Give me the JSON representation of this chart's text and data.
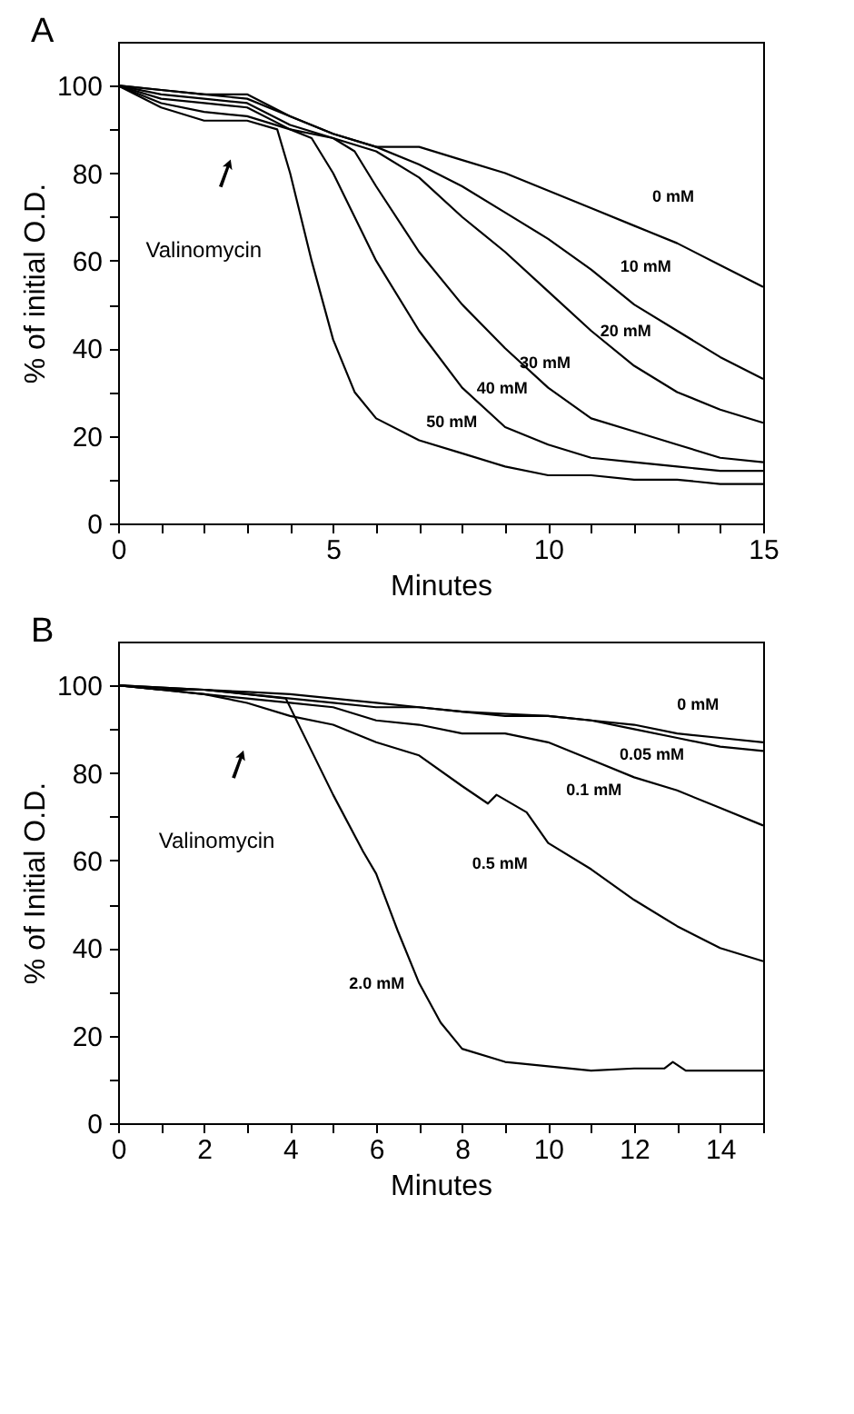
{
  "chart_data": [
    {
      "type": "line",
      "title": "A",
      "xlabel": "Minutes",
      "ylabel": "% of initial O.D.",
      "xlim": [
        0,
        15
      ],
      "ylim": [
        0,
        110
      ],
      "xticks": [
        0,
        {
          "value": 1,
          "label": null
        },
        {
          "value": 2,
          "label": null
        },
        {
          "value": 3,
          "label": null
        },
        {
          "value": 4,
          "label": null
        },
        5,
        {
          "value": 6,
          "label": null
        },
        {
          "value": 7,
          "label": null
        },
        {
          "value": 8,
          "label": null
        },
        {
          "value": 9,
          "label": null
        },
        10,
        {
          "value": 11,
          "label": null
        },
        {
          "value": 12,
          "label": null
        },
        {
          "value": 13,
          "label": null
        },
        {
          "value": 14,
          "label": null
        },
        15
      ],
      "yticks": [
        0,
        {
          "value": 10,
          "label": null
        },
        20,
        {
          "value": 30,
          "label": null
        },
        40,
        {
          "value": 50,
          "label": null
        },
        60,
        {
          "value": 70,
          "label": null
        },
        80,
        {
          "value": 90,
          "label": null
        },
        100
      ],
      "grid": false,
      "legend": false,
      "marker": "none",
      "line_style": "solid",
      "annotations": [
        {
          "text": "Valinomycin",
          "x": 2.5,
          "y": 80
        }
      ],
      "series": [
        {
          "name": "0 mM",
          "color": "#000000",
          "x": [
            0,
            1,
            2,
            3,
            4,
            5,
            6,
            7,
            8,
            9,
            10,
            11,
            12,
            13,
            14,
            15
          ],
          "values": [
            100,
            99,
            98,
            98,
            93,
            89,
            86,
            86,
            83,
            80,
            76,
            72,
            68,
            64,
            59,
            54
          ]
        },
        {
          "name": "10 mM",
          "color": "#000000",
          "x": [
            0,
            1,
            2,
            3,
            4,
            5,
            6,
            7,
            8,
            9,
            10,
            11,
            12,
            13,
            14,
            15
          ],
          "values": [
            100,
            99,
            98,
            97,
            93,
            89,
            86,
            82,
            77,
            71,
            65,
            58,
            50,
            44,
            38,
            33
          ]
        },
        {
          "name": "20 mM",
          "color": "#000000",
          "x": [
            0,
            1,
            2,
            3,
            4,
            5,
            6,
            7,
            8,
            9,
            10,
            11,
            12,
            13,
            14,
            15
          ],
          "values": [
            100,
            98,
            97,
            96,
            91,
            88,
            85,
            79,
            70,
            62,
            53,
            44,
            36,
            30,
            26,
            23
          ]
        },
        {
          "name": "30 mM",
          "color": "#000000",
          "x": [
            0,
            1,
            2,
            3,
            4,
            5,
            5.5,
            6,
            7,
            8,
            9,
            10,
            11,
            12,
            13,
            14,
            15
          ],
          "values": [
            100,
            97,
            96,
            95,
            90,
            88,
            85,
            77,
            62,
            50,
            40,
            31,
            24,
            21,
            18,
            15,
            14
          ]
        },
        {
          "name": "40 mM",
          "color": "#000000",
          "x": [
            0,
            1,
            2,
            3,
            4,
            4.5,
            5,
            6,
            7,
            8,
            9,
            10,
            11,
            12,
            13,
            14,
            15
          ],
          "values": [
            100,
            96,
            94,
            93,
            90,
            88,
            80,
            60,
            44,
            31,
            22,
            18,
            15,
            14,
            13,
            12,
            12
          ]
        },
        {
          "name": "50 mM",
          "color": "#000000",
          "x": [
            0,
            1,
            2,
            3,
            3.7,
            4,
            4.5,
            5,
            5.5,
            6,
            7,
            8,
            9,
            10,
            11,
            12,
            13,
            14,
            15
          ],
          "values": [
            100,
            95,
            92,
            92,
            90,
            80,
            60,
            42,
            30,
            24,
            19,
            16,
            13,
            11,
            11,
            10,
            10,
            9,
            9
          ]
        }
      ]
    },
    {
      "type": "line",
      "title": "B",
      "xlabel": "Minutes",
      "ylabel": "% of Initial O.D.",
      "xlim": [
        0,
        15
      ],
      "ylim": [
        0,
        110
      ],
      "xticks": [
        0,
        {
          "value": 1,
          "label": null
        },
        2,
        {
          "value": 3,
          "label": null
        },
        4,
        {
          "value": 5,
          "label": null
        },
        6,
        {
          "value": 7,
          "label": null
        },
        8,
        {
          "value": 9,
          "label": null
        },
        10,
        {
          "value": 11,
          "label": null
        },
        12,
        {
          "value": 13,
          "label": null
        },
        14,
        {
          "value": 15,
          "label": null
        }
      ],
      "yticks": [
        0,
        {
          "value": 10,
          "label": null
        },
        20,
        {
          "value": 30,
          "label": null
        },
        40,
        {
          "value": 50,
          "label": null
        },
        60,
        {
          "value": 70,
          "label": null
        },
        80,
        {
          "value": 90,
          "label": null
        },
        100
      ],
      "grid": false,
      "legend": false,
      "marker": "none",
      "line_style": "solid",
      "annotations": [
        {
          "text": "Valinomycin",
          "x": 2.8,
          "y": 82
        }
      ],
      "series": [
        {
          "name": "0 mM",
          "color": "#000000",
          "x": [
            0,
            1,
            2,
            3,
            4,
            5,
            6,
            7,
            8,
            9,
            10,
            11,
            12,
            13,
            14,
            15
          ],
          "values": [
            100,
            99.5,
            99,
            98.5,
            98,
            97,
            96,
            95,
            94,
            93.5,
            93,
            92,
            91,
            89,
            88,
            87
          ]
        },
        {
          "name": "0.05 mM",
          "color": "#000000",
          "x": [
            0,
            1,
            2,
            3,
            4,
            5,
            6,
            7,
            8,
            9,
            10,
            11,
            12,
            13,
            14,
            15
          ],
          "values": [
            100,
            99,
            99,
            98,
            97,
            96,
            95,
            95,
            94,
            93,
            93,
            92,
            90,
            88,
            86,
            85
          ]
        },
        {
          "name": "0.1 mM",
          "color": "#000000",
          "x": [
            0,
            1,
            2,
            3,
            4,
            5,
            6,
            7,
            8,
            9,
            10,
            11,
            12,
            13,
            14,
            15
          ],
          "values": [
            100,
            99,
            98,
            97,
            96,
            95,
            92,
            91,
            89,
            89,
            87,
            83,
            79,
            76,
            72,
            68
          ]
        },
        {
          "name": "0.5 mM",
          "color": "#000000",
          "x": [
            0,
            1,
            2,
            3,
            4,
            5,
            6,
            7,
            8,
            8.6,
            8.8,
            9.5,
            10,
            11,
            12,
            13,
            14,
            15
          ],
          "values": [
            100,
            99,
            98,
            96,
            93,
            91,
            87,
            84,
            77,
            73,
            75,
            71,
            64,
            58,
            51,
            45,
            40,
            37
          ]
        },
        {
          "name": "2.0 mM",
          "color": "#000000",
          "x": [
            0,
            1,
            2,
            3,
            3.9,
            5,
            5.7,
            6,
            6.5,
            7,
            7.5,
            8,
            9,
            10,
            11,
            12,
            12.7,
            12.9,
            13.2,
            14,
            15
          ],
          "values": [
            100,
            99.5,
            99,
            98,
            97,
            75,
            62,
            57,
            44,
            32,
            23,
            17,
            14,
            13,
            12,
            12.5,
            12.5,
            14,
            12,
            12,
            12
          ]
        }
      ]
    }
  ]
}
